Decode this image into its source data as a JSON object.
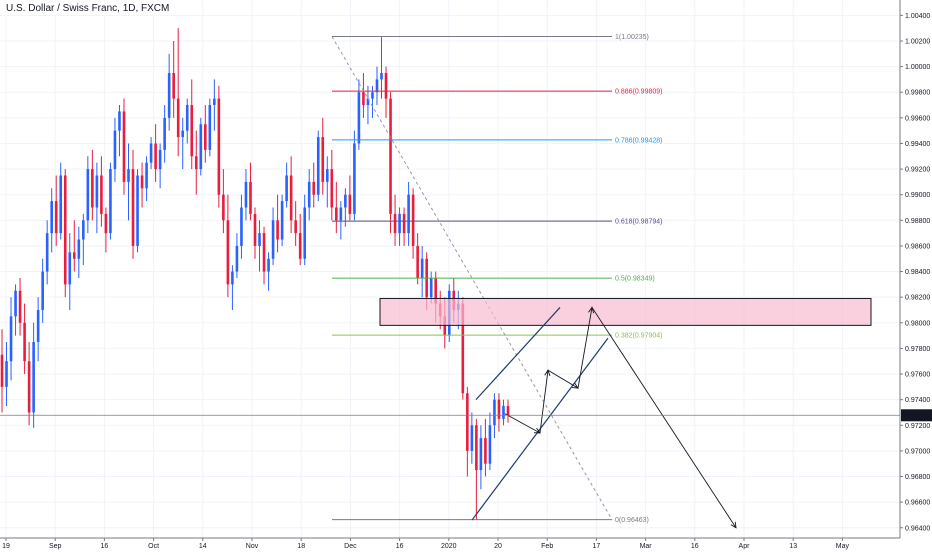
{
  "window": {
    "title": "U.S. Dollar / Swiss Franc, 1D, FXCM"
  },
  "colors": {
    "up": "#2962ff",
    "down": "#e91e3c",
    "grid": "#f0f3fa",
    "axis": "#787b86",
    "zone_fill": "#f8bbd0",
    "zone_border": "#131722",
    "price_badge": "#131722"
  },
  "chart_data": {
    "type": "candlestick",
    "title": "U.S. Dollar / Swiss Franc, 1D, FXCM",
    "ylim": [
      0.9632,
      1.0052
    ],
    "y_ticks": [
      "1.00400",
      "1.00200",
      "1.00000",
      "0.99800",
      "0.99600",
      "0.99400",
      "0.99200",
      "0.99000",
      "0.98800",
      "0.98600",
      "0.98400",
      "0.98200",
      "0.98000",
      "0.97800",
      "0.97600",
      "0.97400",
      "0.97200",
      "0.97000",
      "0.96800",
      "0.96600",
      "0.96400"
    ],
    "x_ticks": [
      "19",
      "Sep",
      "16",
      "Oct",
      "14",
      "Nov",
      "18",
      "Dec",
      "16",
      "2020",
      "20",
      "Feb",
      "17",
      "Mar",
      "16",
      "Apr",
      "13",
      "May"
    ],
    "last_price": "0.97278",
    "fib_levels": [
      {
        "label": "1(1.00235)",
        "value": 1.00235,
        "color": "#787b86"
      },
      {
        "label": "0.886(0.99809)",
        "value": 0.99809,
        "color": "#e91e3c"
      },
      {
        "label": "0.786(0.99428)",
        "value": 0.99428,
        "color": "#2196f3"
      },
      {
        "label": "0.618(0.98794)",
        "value": 0.98794,
        "color": "#5b4a9b"
      },
      {
        "label": "0.5(0.98349)",
        "value": 0.98349,
        "color": "#4caf50"
      },
      {
        "label": "0.382(0.97904)",
        "value": 0.97904,
        "color": "#8bc34a"
      },
      {
        "label": "0(0.96463)",
        "value": 0.96463,
        "color": "#787b86"
      }
    ],
    "resistance_zone": {
      "low": 0.9798,
      "high": 0.9819
    },
    "candles": [
      {
        "o": 0.9775,
        "h": 0.9795,
        "l": 0.973,
        "c": 0.975
      },
      {
        "o": 0.975,
        "h": 0.9785,
        "l": 0.9735,
        "c": 0.977
      },
      {
        "o": 0.977,
        "h": 0.982,
        "l": 0.9755,
        "c": 0.9805
      },
      {
        "o": 0.9805,
        "h": 0.983,
        "l": 0.979,
        "c": 0.9825
      },
      {
        "o": 0.9825,
        "h": 0.9835,
        "l": 0.979,
        "c": 0.98
      },
      {
        "o": 0.98,
        "h": 0.9815,
        "l": 0.976,
        "c": 0.977
      },
      {
        "o": 0.977,
        "h": 0.9785,
        "l": 0.972,
        "c": 0.973
      },
      {
        "o": 0.973,
        "h": 0.98,
        "l": 0.9718,
        "c": 0.9785
      },
      {
        "o": 0.9785,
        "h": 0.982,
        "l": 0.977,
        "c": 0.981
      },
      {
        "o": 0.981,
        "h": 0.985,
        "l": 0.98,
        "c": 0.984
      },
      {
        "o": 0.984,
        "h": 0.988,
        "l": 0.983,
        "c": 0.987
      },
      {
        "o": 0.987,
        "h": 0.9905,
        "l": 0.9855,
        "c": 0.9895
      },
      {
        "o": 0.9895,
        "h": 0.9915,
        "l": 0.986,
        "c": 0.987
      },
      {
        "o": 0.987,
        "h": 0.9925,
        "l": 0.9865,
        "c": 0.9915
      },
      {
        "o": 0.9915,
        "h": 0.992,
        "l": 0.982,
        "c": 0.983
      },
      {
        "o": 0.983,
        "h": 0.987,
        "l": 0.981,
        "c": 0.9855
      },
      {
        "o": 0.9855,
        "h": 0.988,
        "l": 0.984,
        "c": 0.985
      },
      {
        "o": 0.985,
        "h": 0.9875,
        "l": 0.9835,
        "c": 0.9865
      },
      {
        "o": 0.9865,
        "h": 0.9885,
        "l": 0.9845,
        "c": 0.988
      },
      {
        "o": 0.988,
        "h": 0.993,
        "l": 0.987,
        "c": 0.992
      },
      {
        "o": 0.992,
        "h": 0.9935,
        "l": 0.988,
        "c": 0.989
      },
      {
        "o": 0.989,
        "h": 0.9925,
        "l": 0.987,
        "c": 0.9915
      },
      {
        "o": 0.9915,
        "h": 0.993,
        "l": 0.9875,
        "c": 0.9885
      },
      {
        "o": 0.9885,
        "h": 0.989,
        "l": 0.9855,
        "c": 0.987
      },
      {
        "o": 0.987,
        "h": 0.9925,
        "l": 0.9865,
        "c": 0.992
      },
      {
        "o": 0.992,
        "h": 0.996,
        "l": 0.991,
        "c": 0.995
      },
      {
        "o": 0.995,
        "h": 0.997,
        "l": 0.993,
        "c": 0.9965
      },
      {
        "o": 0.9965,
        "h": 0.9975,
        "l": 0.99,
        "c": 0.991
      },
      {
        "o": 0.991,
        "h": 0.994,
        "l": 0.988,
        "c": 0.992
      },
      {
        "o": 0.992,
        "h": 0.9935,
        "l": 0.985,
        "c": 0.986
      },
      {
        "o": 0.986,
        "h": 0.992,
        "l": 0.9855,
        "c": 0.9915
      },
      {
        "o": 0.9915,
        "h": 0.9925,
        "l": 0.989,
        "c": 0.9905
      },
      {
        "o": 0.9905,
        "h": 0.993,
        "l": 0.9895,
        "c": 0.9925
      },
      {
        "o": 0.9925,
        "h": 0.9945,
        "l": 0.992,
        "c": 0.994
      },
      {
        "o": 0.994,
        "h": 0.9955,
        "l": 0.991,
        "c": 0.992
      },
      {
        "o": 0.992,
        "h": 0.994,
        "l": 0.9905,
        "c": 0.9935
      },
      {
        "o": 0.9935,
        "h": 0.997,
        "l": 0.9925,
        "c": 0.996
      },
      {
        "o": 0.996,
        "h": 1.001,
        "l": 0.995,
        "c": 0.9995
      },
      {
        "o": 0.9995,
        "h": 1.002,
        "l": 0.996,
        "c": 0.9975
      },
      {
        "o": 0.9975,
        "h": 1.003,
        "l": 0.993,
        "c": 0.9945
      },
      {
        "o": 0.9945,
        "h": 0.996,
        "l": 0.992,
        "c": 0.995
      },
      {
        "o": 0.995,
        "h": 0.9975,
        "l": 0.994,
        "c": 0.997
      },
      {
        "o": 0.997,
        "h": 0.999,
        "l": 0.992,
        "c": 0.993
      },
      {
        "o": 0.993,
        "h": 0.995,
        "l": 0.99,
        "c": 0.992
      },
      {
        "o": 0.992,
        "h": 0.996,
        "l": 0.9915,
        "c": 0.9955
      },
      {
        "o": 0.9955,
        "h": 0.997,
        "l": 0.9925,
        "c": 0.9935
      },
      {
        "o": 0.9935,
        "h": 0.9975,
        "l": 0.993,
        "c": 0.997
      },
      {
        "o": 0.997,
        "h": 0.999,
        "l": 0.995,
        "c": 0.9975
      },
      {
        "o": 0.9975,
        "h": 0.9985,
        "l": 0.989,
        "c": 0.99
      },
      {
        "o": 0.99,
        "h": 0.992,
        "l": 0.987,
        "c": 0.988
      },
      {
        "o": 0.988,
        "h": 0.99,
        "l": 0.982,
        "c": 0.983
      },
      {
        "o": 0.983,
        "h": 0.9845,
        "l": 0.981,
        "c": 0.984
      },
      {
        "o": 0.984,
        "h": 0.987,
        "l": 0.9835,
        "c": 0.986
      },
      {
        "o": 0.986,
        "h": 0.99,
        "l": 0.985,
        "c": 0.989
      },
      {
        "o": 0.989,
        "h": 0.992,
        "l": 0.988,
        "c": 0.991
      },
      {
        "o": 0.991,
        "h": 0.9925,
        "l": 0.988,
        "c": 0.9885
      },
      {
        "o": 0.9885,
        "h": 0.989,
        "l": 0.985,
        "c": 0.986
      },
      {
        "o": 0.986,
        "h": 0.988,
        "l": 0.984,
        "c": 0.987
      },
      {
        "o": 0.987,
        "h": 0.9875,
        "l": 0.983,
        "c": 0.984
      },
      {
        "o": 0.984,
        "h": 0.9855,
        "l": 0.9825,
        "c": 0.985
      },
      {
        "o": 0.985,
        "h": 0.989,
        "l": 0.9845,
        "c": 0.988
      },
      {
        "o": 0.988,
        "h": 0.99,
        "l": 0.9855,
        "c": 0.9865
      },
      {
        "o": 0.9865,
        "h": 0.99,
        "l": 0.986,
        "c": 0.9895
      },
      {
        "o": 0.9895,
        "h": 0.9925,
        "l": 0.989,
        "c": 0.9915
      },
      {
        "o": 0.9915,
        "h": 0.993,
        "l": 0.987,
        "c": 0.988
      },
      {
        "o": 0.988,
        "h": 0.9895,
        "l": 0.986,
        "c": 0.987
      },
      {
        "o": 0.987,
        "h": 0.9885,
        "l": 0.9845,
        "c": 0.985
      },
      {
        "o": 0.985,
        "h": 0.99,
        "l": 0.9845,
        "c": 0.989
      },
      {
        "o": 0.989,
        "h": 0.992,
        "l": 0.988,
        "c": 0.991
      },
      {
        "o": 0.991,
        "h": 0.9925,
        "l": 0.989,
        "c": 0.99
      },
      {
        "o": 0.99,
        "h": 0.995,
        "l": 0.9895,
        "c": 0.9945
      },
      {
        "o": 0.9945,
        "h": 0.996,
        "l": 0.99,
        "c": 0.991
      },
      {
        "o": 0.991,
        "h": 0.993,
        "l": 0.989,
        "c": 0.992
      },
      {
        "o": 0.992,
        "h": 0.9935,
        "l": 0.988,
        "c": 0.989
      },
      {
        "o": 0.989,
        "h": 0.991,
        "l": 0.987,
        "c": 0.988
      },
      {
        "o": 0.988,
        "h": 0.9895,
        "l": 0.9865,
        "c": 0.989
      },
      {
        "o": 0.989,
        "h": 0.9905,
        "l": 0.9875,
        "c": 0.99
      },
      {
        "o": 0.99,
        "h": 0.9915,
        "l": 0.988,
        "c": 0.9885
      },
      {
        "o": 0.9885,
        "h": 0.995,
        "l": 0.988,
        "c": 0.994
      },
      {
        "o": 0.994,
        "h": 0.999,
        "l": 0.9935,
        "c": 0.998
      },
      {
        "o": 0.998,
        "h": 0.9995,
        "l": 0.996,
        "c": 0.997
      },
      {
        "o": 0.997,
        "h": 0.9985,
        "l": 0.9955,
        "c": 0.9975
      },
      {
        "o": 0.9975,
        "h": 0.9985,
        "l": 0.996,
        "c": 0.998
      },
      {
        "o": 0.998,
        "h": 1.0,
        "l": 0.997,
        "c": 0.999
      },
      {
        "o": 0.999,
        "h": 1.0023,
        "l": 0.9975,
        "c": 0.9995
      },
      {
        "o": 0.9995,
        "h": 1.0,
        "l": 0.996,
        "c": 0.9975
      },
      {
        "o": 0.9975,
        "h": 0.998,
        "l": 0.987,
        "c": 0.9885
      },
      {
        "o": 0.9885,
        "h": 0.99,
        "l": 0.986,
        "c": 0.987
      },
      {
        "o": 0.987,
        "h": 0.989,
        "l": 0.986,
        "c": 0.9885
      },
      {
        "o": 0.9885,
        "h": 0.989,
        "l": 0.986,
        "c": 0.987
      },
      {
        "o": 0.987,
        "h": 0.991,
        "l": 0.986,
        "c": 0.99
      },
      {
        "o": 0.99,
        "h": 0.9905,
        "l": 0.985,
        "c": 0.986
      },
      {
        "o": 0.986,
        "h": 0.987,
        "l": 0.983,
        "c": 0.9835
      },
      {
        "o": 0.9835,
        "h": 0.986,
        "l": 0.982,
        "c": 0.985
      },
      {
        "o": 0.985,
        "h": 0.9855,
        "l": 0.981,
        "c": 0.982
      },
      {
        "o": 0.982,
        "h": 0.984,
        "l": 0.9815,
        "c": 0.9835
      },
      {
        "o": 0.9835,
        "h": 0.984,
        "l": 0.98,
        "c": 0.9815
      },
      {
        "o": 0.9815,
        "h": 0.9825,
        "l": 0.9795,
        "c": 0.9805
      },
      {
        "o": 0.9805,
        "h": 0.982,
        "l": 0.978,
        "c": 0.979
      },
      {
        "o": 0.979,
        "h": 0.983,
        "l": 0.9785,
        "c": 0.9825
      },
      {
        "o": 0.9825,
        "h": 0.9835,
        "l": 0.98,
        "c": 0.981
      },
      {
        "o": 0.981,
        "h": 0.9825,
        "l": 0.9795,
        "c": 0.9815
      },
      {
        "o": 0.9815,
        "h": 0.982,
        "l": 0.974,
        "c": 0.9745
      },
      {
        "o": 0.9745,
        "h": 0.975,
        "l": 0.968,
        "c": 0.97
      },
      {
        "o": 0.97,
        "h": 0.973,
        "l": 0.969,
        "c": 0.972
      },
      {
        "o": 0.972,
        "h": 0.9725,
        "l": 0.9646,
        "c": 0.9685
      },
      {
        "o": 0.9685,
        "h": 0.972,
        "l": 0.967,
        "c": 0.971
      },
      {
        "o": 0.971,
        "h": 0.9725,
        "l": 0.968,
        "c": 0.969
      },
      {
        "o": 0.969,
        "h": 0.973,
        "l": 0.9685,
        "c": 0.972
      },
      {
        "o": 0.972,
        "h": 0.9745,
        "l": 0.971,
        "c": 0.974
      },
      {
        "o": 0.974,
        "h": 0.9745,
        "l": 0.9715,
        "c": 0.9725
      },
      {
        "o": 0.9725,
        "h": 0.974,
        "l": 0.972,
        "c": 0.9735
      },
      {
        "o": 0.9735,
        "h": 0.974,
        "l": 0.9722,
        "c": 0.9728
      }
    ]
  }
}
